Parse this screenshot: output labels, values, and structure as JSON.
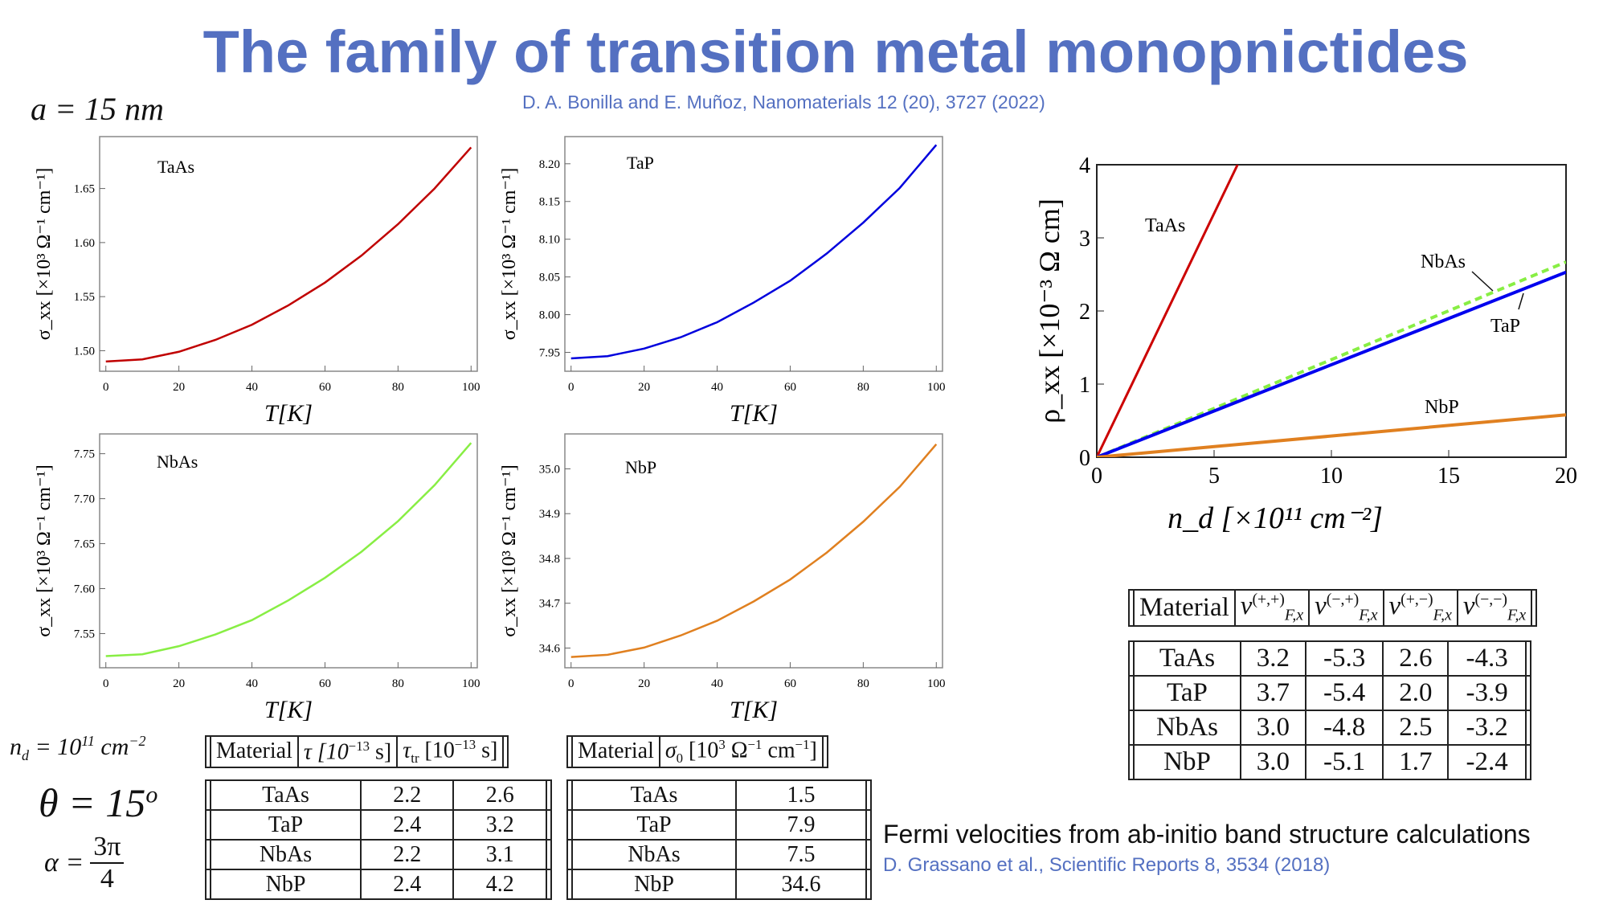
{
  "header": {
    "title": "The family of transition metal monopnictides",
    "citation": "D. A. Bonilla and E. Muñoz, Nanomaterials 12 (20), 3727 (2022)"
  },
  "params": {
    "a": "a = 15 nm",
    "nd": "n",
    "nd_sub": "d",
    "nd_rest": " = 10",
    "nd_exp": "11",
    "nd_unit": " cm",
    "nd_unit_exp": "−2",
    "theta": "θ = 15",
    "theta_exp": "o",
    "alpha": "α =",
    "alpha_num": "3π",
    "alpha_den": "4"
  },
  "table_tau": {
    "headers": [
      "Material",
      "τ [10",
      "−13",
      " s]",
      "τ",
      "tr",
      " [10",
      "−13",
      " s]"
    ],
    "rows": [
      [
        "TaAs",
        "2.2",
        "2.6"
      ],
      [
        "TaP",
        "2.4",
        "3.2"
      ],
      [
        "NbAs",
        "2.2",
        "3.1"
      ],
      [
        "NbP",
        "2.4",
        "4.2"
      ]
    ]
  },
  "table_sigma": {
    "headers": [
      "Material",
      "σ",
      "0",
      " [10",
      "3",
      " Ω",
      "−1",
      " cm",
      "−1",
      "]"
    ],
    "rows": [
      [
        "TaAs",
        "1.5"
      ],
      [
        "TaP",
        "7.9"
      ],
      [
        "NbAs",
        "7.5"
      ],
      [
        "NbP",
        "34.6"
      ]
    ]
  },
  "table_vf": {
    "headers": [
      "Material",
      "v",
      "(+,+)",
      "F,x",
      "(−,+)",
      "(+,−)",
      "(−,−)"
    ],
    "rows": [
      [
        "TaAs",
        "3.2",
        "-5.3",
        "2.6",
        "-4.3"
      ],
      [
        "TaP",
        "3.7",
        "-5.4",
        "2.0",
        "-3.9"
      ],
      [
        "NbAs",
        "3.0",
        "-4.8",
        "2.5",
        "-3.2"
      ],
      [
        "NbP",
        "3.0",
        "-5.1",
        "1.7",
        "-2.4"
      ]
    ]
  },
  "footer": {
    "caption": "Fermi velocities from ab-initio band structure calculations",
    "citation": "D. Grassano et al., Scientific Reports 8, 3534 (2018)"
  },
  "chart_data": [
    {
      "type": "line",
      "title": "TaAs",
      "xlabel": "T[K]",
      "ylabel": "σ_xx [×10³ Ω⁻¹ cm⁻¹]",
      "color": "#c00000",
      "xlim": [
        -1.7,
        101.7
      ],
      "ylim": [
        1.481,
        1.698
      ],
      "xticks": [
        "0",
        "20",
        "40",
        "60",
        "80",
        "100"
      ],
      "yticks": [
        "1.50",
        "1.55",
        "1.60",
        "1.65"
      ],
      "x": [
        0,
        10,
        20,
        30,
        40,
        50,
        60,
        70,
        80,
        90,
        100
      ],
      "y": [
        1.49,
        1.492,
        1.499,
        1.51,
        1.524,
        1.542,
        1.563,
        1.588,
        1.617,
        1.65,
        1.688
      ]
    },
    {
      "type": "line",
      "title": "TaP",
      "xlabel": "T[K]",
      "ylabel": "σ_xx [×10³ Ω⁻¹ cm⁻¹]",
      "color": "#0000dd",
      "xlim": [
        -1.7,
        101.7
      ],
      "ylim": [
        7.925,
        8.236
      ],
      "xticks": [
        "0",
        "20",
        "40",
        "60",
        "80",
        "100"
      ],
      "yticks": [
        "7.95",
        "8.00",
        "8.05",
        "8.10",
        "8.15",
        "8.20"
      ],
      "x": [
        0,
        10,
        20,
        30,
        40,
        50,
        60,
        70,
        80,
        90,
        100
      ],
      "y": [
        7.942,
        7.945,
        7.955,
        7.97,
        7.99,
        8.016,
        8.045,
        8.081,
        8.122,
        8.168,
        8.225
      ]
    },
    {
      "type": "line",
      "title": "NbAs",
      "xlabel": "T[K]",
      "ylabel": "σ_xx [×10³ Ω⁻¹ cm⁻¹]",
      "color": "#88ee44",
      "xlim": [
        -1.7,
        101.7
      ],
      "ylim": [
        7.512,
        7.772
      ],
      "xticks": [
        "0",
        "20",
        "40",
        "60",
        "80",
        "100"
      ],
      "yticks": [
        "7.55",
        "7.60",
        "7.65",
        "7.70",
        "7.75"
      ],
      "x": [
        0,
        10,
        20,
        30,
        40,
        50,
        60,
        70,
        80,
        90,
        100
      ],
      "y": [
        7.525,
        7.527,
        7.536,
        7.549,
        7.565,
        7.587,
        7.612,
        7.641,
        7.675,
        7.715,
        7.762
      ]
    },
    {
      "type": "line",
      "title": "NbP",
      "xlabel": "T[K]",
      "ylabel": "σ_xx [×10³ Ω⁻¹ cm⁻¹]",
      "color": "#e08020",
      "xlim": [
        -1.7,
        101.7
      ],
      "ylim": [
        34.556,
        35.078
      ],
      "xticks": [
        "0",
        "20",
        "40",
        "60",
        "80",
        "100"
      ],
      "yticks": [
        "34.6",
        "34.7",
        "34.8",
        "34.9",
        "35.0"
      ],
      "x": [
        0,
        10,
        20,
        30,
        40,
        50,
        60,
        70,
        80,
        90,
        100
      ],
      "y": [
        34.58,
        34.585,
        34.601,
        34.628,
        34.661,
        34.704,
        34.753,
        34.813,
        34.882,
        34.96,
        35.055
      ]
    },
    {
      "type": "line",
      "title": "",
      "xlabel": "n_d [×10¹¹ cm⁻²]",
      "ylabel": "ρ_xx [×10⁻³ Ω cm]",
      "xlim": [
        0,
        20
      ],
      "ylim": [
        0,
        4
      ],
      "xticks": [
        "0",
        "5",
        "10",
        "15",
        "20"
      ],
      "yticks": [
        "0",
        "1",
        "2",
        "3",
        "4"
      ],
      "series": [
        {
          "name": "TaAs",
          "color": "#cc0000",
          "dashed": false,
          "x": [
            0,
            6
          ],
          "y": [
            0,
            4
          ]
        },
        {
          "name": "NbAs",
          "color": "#88ee44",
          "dashed": true,
          "x": [
            0,
            20
          ],
          "y": [
            0,
            2.67
          ]
        },
        {
          "name": "TaP",
          "color": "#0000ee",
          "dashed": false,
          "x": [
            0,
            20
          ],
          "y": [
            0,
            2.53
          ]
        },
        {
          "name": "NbP",
          "color": "#e08020",
          "dashed": false,
          "x": [
            0,
            20
          ],
          "y": [
            0,
            0.58
          ]
        }
      ]
    }
  ]
}
